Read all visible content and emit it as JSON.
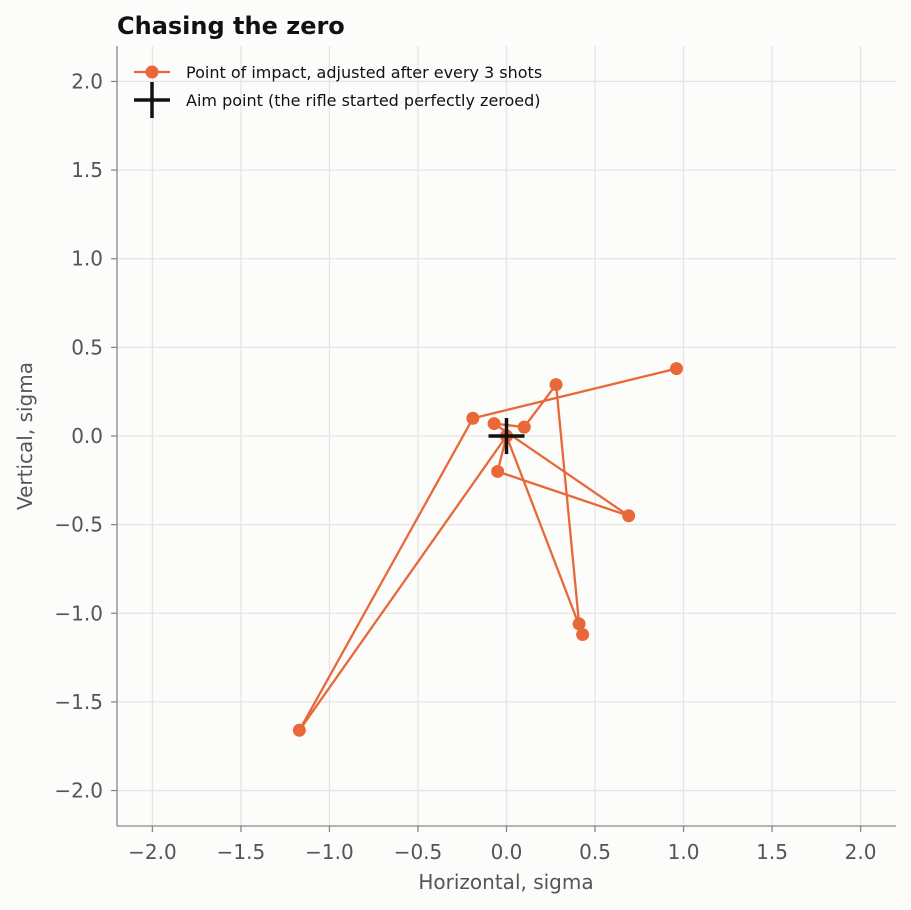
{
  "chart_data": {
    "type": "line",
    "title": "Chasing the zero",
    "xlabel": "Horizontal, sigma",
    "ylabel": "Vertical, sigma",
    "xlim": [
      -2.2,
      2.2
    ],
    "ylim": [
      -2.2,
      2.2
    ],
    "xticks": [
      -2.0,
      -1.5,
      -1.0,
      -0.5,
      0.0,
      0.5,
      1.0,
      1.5,
      2.0
    ],
    "yticks": [
      -2.0,
      -1.5,
      -1.0,
      -0.5,
      0.0,
      0.5,
      1.0,
      1.5,
      2.0
    ],
    "xtick_labels": [
      "−2.0",
      "−1.5",
      "−1.0",
      "−0.5",
      "0.0",
      "0.5",
      "1.0",
      "1.5",
      "2.0"
    ],
    "ytick_labels": [
      "−2.0",
      "−1.5",
      "−1.0",
      "−0.5",
      "0.0",
      "0.5",
      "1.0",
      "1.5",
      "2.0"
    ],
    "grid": true,
    "legend_position": "top-left",
    "series": [
      {
        "name": "Point of impact, adjusted after every 3 shots",
        "color": "#e8683a",
        "marker": "circle",
        "x": [
          0.0,
          -0.05,
          0.69,
          -0.07,
          0.1,
          0.28,
          0.41,
          0.43,
          0.0,
          -1.17,
          -0.19,
          0.96
        ],
        "y": [
          0.0,
          -0.2,
          -0.45,
          0.07,
          0.05,
          0.29,
          -1.06,
          -1.12,
          0.0,
          -1.66,
          0.1,
          0.38
        ]
      },
      {
        "name": "Aim point (the rifle started perfectly zeroed)",
        "color": "#111111",
        "marker": "plus",
        "x": [
          0.0
        ],
        "y": [
          0.0
        ]
      }
    ]
  }
}
